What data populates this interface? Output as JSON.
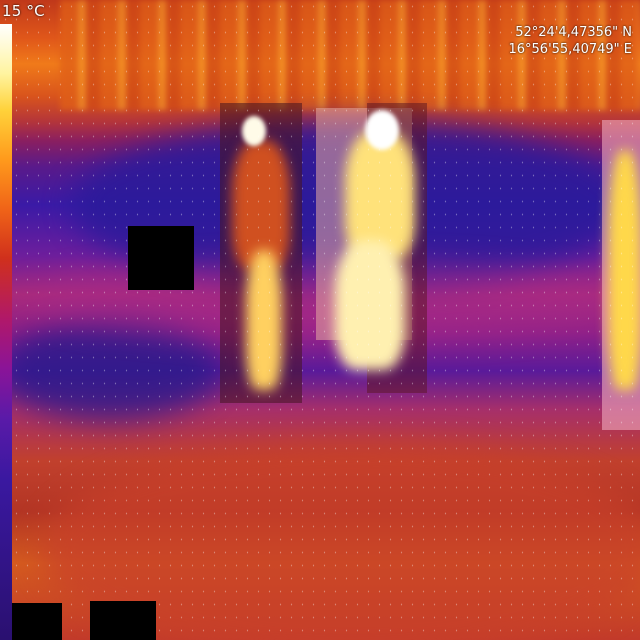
{
  "overlay": {
    "temperature": "15 °C",
    "gps_lat": "52°24'4,47356\" N",
    "gps_lon": "16°56'55,40749\" E"
  },
  "colors": {
    "hot": "#ffffff",
    "warm": "#ffd23a",
    "mid": "#e0571a",
    "cool": "#8a1f60",
    "cold": "#3a1aa6",
    "mask": "#000000"
  },
  "icons": {
    "colorbar": "thermal-colorbar-icon"
  },
  "detections": [
    {
      "label": "person"
    },
    {
      "label": "person"
    },
    {
      "label": "person"
    }
  ]
}
